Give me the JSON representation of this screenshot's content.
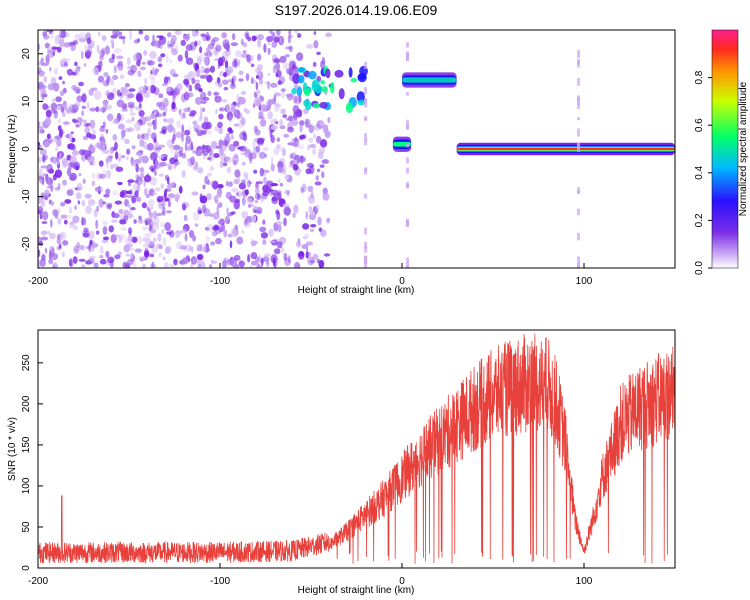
{
  "title": "S197.2026.014.19.06.E09",
  "chart_data": [
    {
      "type": "heatmap",
      "name": "spectrogram",
      "xlabel": "Height of straight line (km)",
      "ylabel": "Frequency (Hz)",
      "xlim": [
        -200,
        150
      ],
      "ylim": [
        -25,
        25
      ],
      "xticks": [
        -200,
        -100,
        0,
        100
      ],
      "yticks": [
        -20,
        -10,
        0,
        10,
        20
      ],
      "colorbar": {
        "label": "Normalized spectral amplitude",
        "range": [
          0.0,
          1.0
        ],
        "ticks": [
          "0.0",
          "0.2",
          "0.4",
          "0.6",
          "0.8"
        ]
      },
      "features": [
        {
          "label": "broadband noise",
          "x_range": [
            -200,
            -40
          ],
          "freq_range": [
            -25,
            25
          ]
        },
        {
          "label": "scattered patches",
          "x_range": [
            -60,
            -20
          ],
          "freq_center": 13
        },
        {
          "label": "narrow line",
          "x_range": [
            0,
            30
          ],
          "freq_center": 14.5
        },
        {
          "label": "narrow line",
          "x_range": [
            -5,
            5
          ],
          "freq_center": 1
        },
        {
          "label": "carrier line",
          "x_range": [
            30,
            150
          ],
          "freq_center": 0,
          "peak_amplitude": 1.0
        }
      ]
    },
    {
      "type": "line",
      "name": "snr",
      "xlabel": "Height of straight line (km)",
      "ylabel": "SNR (10 * v/v)",
      "xlim": [
        -200,
        150
      ],
      "ylim": [
        0,
        290
      ],
      "xticks": [
        -200,
        -100,
        0,
        100
      ],
      "yticks": [
        0,
        50,
        100,
        150,
        200,
        250
      ],
      "color": "#e8403a",
      "trend": [
        [
          -200,
          15
        ],
        [
          -150,
          15
        ],
        [
          -100,
          15
        ],
        [
          -60,
          17
        ],
        [
          -40,
          28
        ],
        [
          -30,
          45
        ],
        [
          -20,
          65
        ],
        [
          -10,
          85
        ],
        [
          0,
          110
        ],
        [
          10,
          135
        ],
        [
          20,
          155
        ],
        [
          30,
          175
        ],
        [
          40,
          195
        ],
        [
          50,
          210
        ],
        [
          60,
          220
        ],
        [
          70,
          225
        ],
        [
          80,
          222
        ],
        [
          85,
          200
        ],
        [
          90,
          150
        ],
        [
          95,
          60
        ],
        [
          100,
          20
        ],
        [
          105,
          60
        ],
        [
          110,
          110
        ],
        [
          115,
          140
        ],
        [
          120,
          175
        ],
        [
          130,
          195
        ],
        [
          140,
          205
        ],
        [
          150,
          215
        ]
      ]
    }
  ]
}
